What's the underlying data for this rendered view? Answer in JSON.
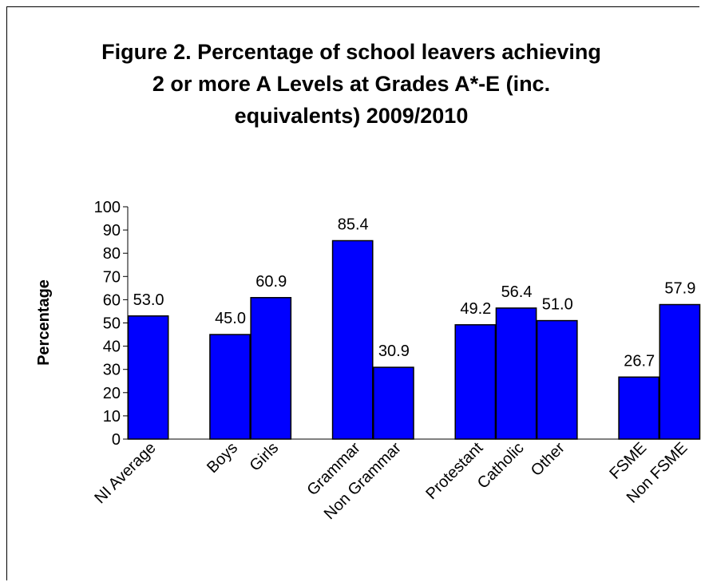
{
  "chart_data": {
    "type": "bar",
    "title_lines": [
      "Figure 2. Percentage of school leavers achieving",
      "2 or more A Levels at Grades A*-E (inc.",
      "equivalents) 2009/2010"
    ],
    "ylabel": "Percentage",
    "xlabel": "",
    "ylim": [
      0,
      100
    ],
    "yticks": [
      0,
      10,
      20,
      30,
      40,
      50,
      60,
      70,
      80,
      90,
      100
    ],
    "categories": [
      "NI Average",
      "Boys",
      "Girls",
      "Grammar",
      "Non Grammar",
      "Protestant",
      "Catholic",
      "Other",
      "FSME",
      "Non FSME"
    ],
    "values": [
      53.0,
      45.0,
      60.9,
      85.4,
      30.9,
      49.2,
      56.4,
      51.0,
      26.7,
      57.9
    ],
    "value_labels": [
      "53.0",
      "45.0",
      "60.9",
      "85.4",
      "30.9",
      "49.2",
      "56.4",
      "51.0",
      "26.7",
      "57.9"
    ],
    "groups": [
      [
        0
      ],
      [
        1,
        2
      ],
      [
        3,
        4
      ],
      [
        5,
        6,
        7
      ],
      [
        8,
        9
      ]
    ],
    "bar_color": "#0000FF",
    "grid": false,
    "legend": "none"
  }
}
